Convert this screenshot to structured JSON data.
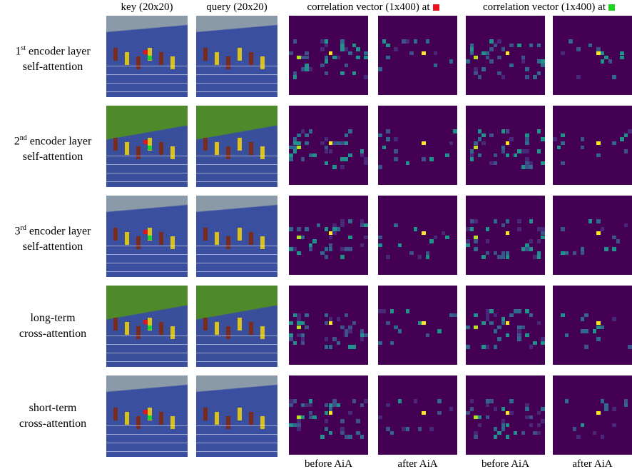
{
  "columns": {
    "key": "key (20x20)",
    "query": "query (20x20)",
    "correlation_red": "correlation vector (1x400) at",
    "correlation_green": "correlation vector (1x400) at"
  },
  "rows": [
    {
      "line1": "1",
      "sup": "st",
      "line1_rest": " encoder layer",
      "line2": "self-attention"
    },
    {
      "line1": "2",
      "sup": "nd",
      "line1_rest": " encoder layer",
      "line2": "self-attention"
    },
    {
      "line1": "3",
      "sup": "rd",
      "line1_rest": " encoder layer",
      "line2": "self-attention"
    },
    {
      "line1": "long-term",
      "line2": "cross-attention"
    },
    {
      "line1": "short-term",
      "line2": "cross-attention"
    }
  ],
  "footer": [
    "before AiA",
    "after AiA",
    "before AiA",
    "after AiA"
  ]
}
